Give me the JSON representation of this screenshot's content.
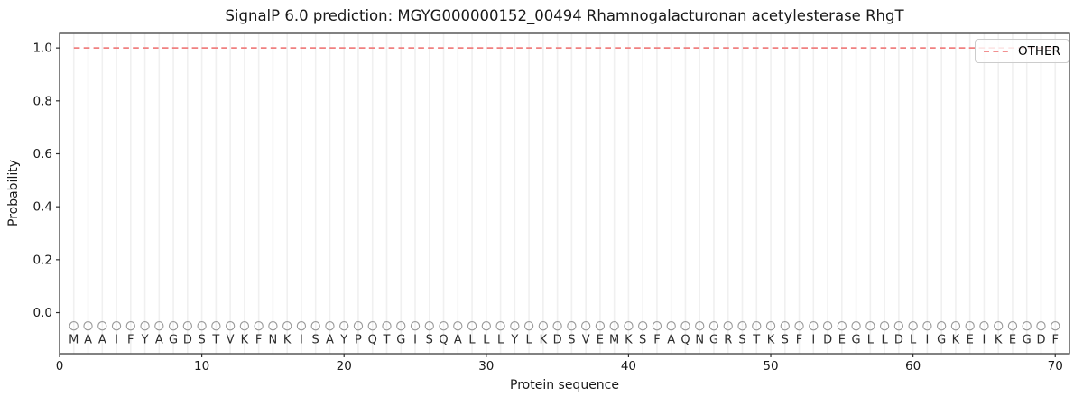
{
  "colors": {
    "other_line": "#f08080",
    "grid": "#f0f0f0",
    "axis": "#2e2e2e",
    "text": "#1a1a1a",
    "marker": "#999999",
    "letter": "#2b2b2b"
  },
  "legend": {
    "label": "OTHER",
    "position": "upper right"
  },
  "chart_data": {
    "type": "line",
    "title": "SignalP 6.0 prediction: MGYG000000152_00494 Rhamnogalacturonan acetylesterase RhgT",
    "xlabel": "Protein sequence",
    "ylabel": "Probability",
    "xlim": [
      0,
      71
    ],
    "ylim": [
      -0.155,
      1.055
    ],
    "xticks": [
      0,
      10,
      20,
      30,
      40,
      50,
      60,
      70
    ],
    "yticks": [
      0.0,
      0.2,
      0.4,
      0.6,
      0.8,
      1.0
    ],
    "ytick_labels": [
      "0.0",
      "0.2",
      "0.4",
      "0.6",
      "0.8",
      "1.0"
    ],
    "grid": "vertical line at every residue position",
    "legend_position": "upper right",
    "sequence": "MAAIFYAGDSTVKFNKISAYPQTGISQALLLYLKDSVEMKSFAQNGRSTKSFIDEGLLDLIGKEIKEGDF",
    "residue_marker": {
      "shape": "circle",
      "y": -0.05,
      "letter_y": -0.1
    },
    "series": [
      {
        "name": "OTHER",
        "linestyle": "dashed",
        "color": "#f08080",
        "x": [
          1,
          2,
          3,
          4,
          5,
          6,
          7,
          8,
          9,
          10,
          11,
          12,
          13,
          14,
          15,
          16,
          17,
          18,
          19,
          20,
          21,
          22,
          23,
          24,
          25,
          26,
          27,
          28,
          29,
          30,
          31,
          32,
          33,
          34,
          35,
          36,
          37,
          38,
          39,
          40,
          41,
          42,
          43,
          44,
          45,
          46,
          47,
          48,
          49,
          50,
          51,
          52,
          53,
          54,
          55,
          56,
          57,
          58,
          59,
          60,
          61,
          62,
          63,
          64,
          65,
          66,
          67,
          68,
          69,
          70
        ],
        "y": [
          1.0,
          1.0,
          1.0,
          1.0,
          1.0,
          1.0,
          1.0,
          1.0,
          1.0,
          1.0,
          1.0,
          1.0,
          1.0,
          1.0,
          1.0,
          1.0,
          1.0,
          1.0,
          1.0,
          1.0,
          1.0,
          1.0,
          1.0,
          1.0,
          1.0,
          1.0,
          1.0,
          1.0,
          1.0,
          1.0,
          1.0,
          1.0,
          1.0,
          1.0,
          1.0,
          1.0,
          1.0,
          1.0,
          1.0,
          1.0,
          1.0,
          1.0,
          1.0,
          1.0,
          1.0,
          1.0,
          1.0,
          1.0,
          1.0,
          1.0,
          1.0,
          1.0,
          1.0,
          1.0,
          1.0,
          1.0,
          1.0,
          1.0,
          1.0,
          1.0,
          1.0,
          1.0,
          1.0,
          1.0,
          1.0,
          1.0,
          1.0,
          1.0,
          1.0,
          1.0
        ]
      }
    ]
  }
}
